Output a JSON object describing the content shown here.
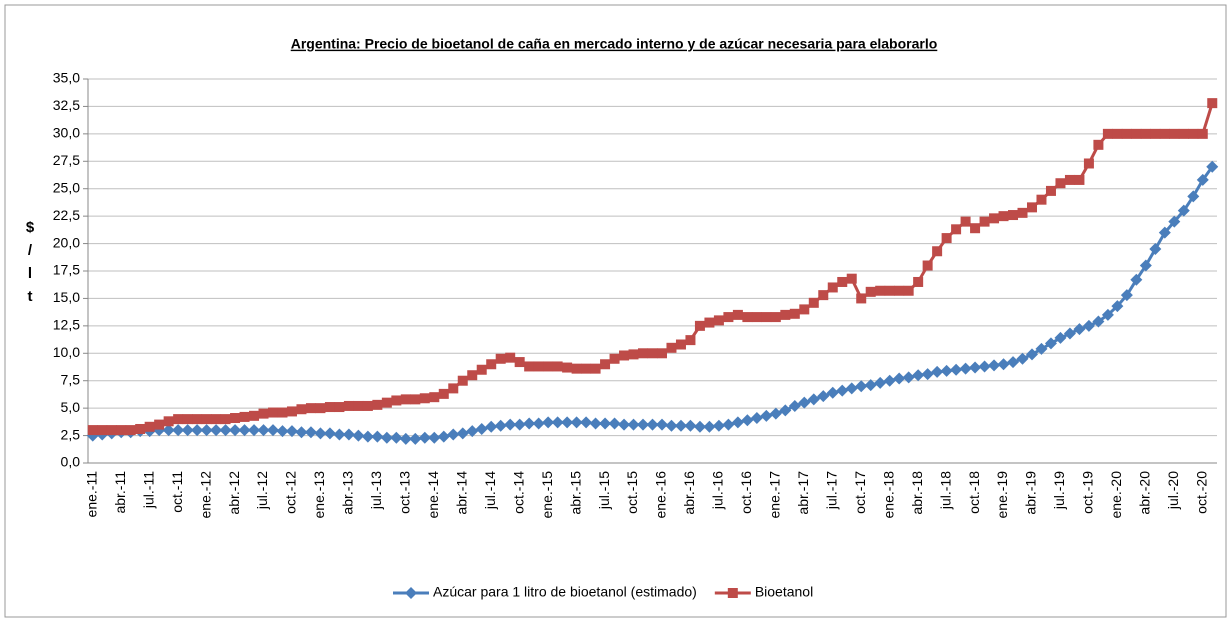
{
  "chart_data": {
    "type": "line",
    "title": "Argentina: Precio de bioetanol de caña en mercado interno y de azúcar necesaria para elaborarlo",
    "y_label": [
      "$",
      "/",
      "l",
      "t"
    ],
    "categories": [
      "ene.-11",
      null,
      null,
      "abr.-11",
      null,
      null,
      "jul.-11",
      null,
      null,
      "oct.-11",
      null,
      null,
      "ene.-12",
      null,
      null,
      "abr.-12",
      null,
      null,
      "jul.-12",
      null,
      null,
      "oct.-12",
      null,
      null,
      "ene.-13",
      null,
      null,
      "abr.-13",
      null,
      null,
      "jul.-13",
      null,
      null,
      "oct.-13",
      null,
      null,
      "ene.-14",
      null,
      null,
      "abr.-14",
      null,
      null,
      "jul.-14",
      null,
      null,
      "oct.-14",
      null,
      null,
      "ene.-15",
      null,
      null,
      "abr.-15",
      null,
      null,
      "jul.-15",
      null,
      null,
      "oct.-15",
      null,
      null,
      "ene.-16",
      null,
      null,
      "abr.-16",
      null,
      null,
      "jul.-16",
      null,
      null,
      "oct.-16",
      null,
      null,
      "ene.-17",
      null,
      null,
      "abr.-17",
      null,
      null,
      "jul.-17",
      null,
      null,
      "oct.-17",
      null,
      null,
      "ene.-18",
      null,
      null,
      "abr.-18",
      null,
      null,
      "jul.-18",
      null,
      null,
      "oct.-18",
      null,
      null,
      "ene.-19",
      null,
      null,
      "abr.-19",
      null,
      null,
      "jul.-19",
      null,
      null,
      "oct.-19",
      null,
      null,
      "ene.-20",
      null,
      null,
      "abr.-20",
      null,
      null,
      "jul.-20",
      null,
      null,
      "oct.-20",
      null
    ],
    "series": [
      {
        "name": "Azúcar para 1 litro de bioetanol (estimado)",
        "color": "#4a7ebb",
        "marker": "diamond",
        "values": [
          2.5,
          2.6,
          2.7,
          2.8,
          2.8,
          2.9,
          2.9,
          3.0,
          3.0,
          3.0,
          3.0,
          3.0,
          3.0,
          3.0,
          3.0,
          3.0,
          3.0,
          3.0,
          3.0,
          3.0,
          2.9,
          2.9,
          2.8,
          2.8,
          2.7,
          2.7,
          2.6,
          2.6,
          2.5,
          2.4,
          2.4,
          2.3,
          2.3,
          2.2,
          2.2,
          2.3,
          2.3,
          2.4,
          2.6,
          2.7,
          2.9,
          3.1,
          3.3,
          3.4,
          3.5,
          3.5,
          3.6,
          3.6,
          3.7,
          3.7,
          3.7,
          3.7,
          3.7,
          3.6,
          3.6,
          3.6,
          3.5,
          3.5,
          3.5,
          3.5,
          3.5,
          3.4,
          3.4,
          3.4,
          3.3,
          3.3,
          3.4,
          3.5,
          3.7,
          3.9,
          4.1,
          4.3,
          4.5,
          4.8,
          5.2,
          5.5,
          5.8,
          6.1,
          6.4,
          6.6,
          6.8,
          7.0,
          7.1,
          7.3,
          7.5,
          7.7,
          7.8,
          8.0,
          8.1,
          8.3,
          8.4,
          8.5,
          8.6,
          8.7,
          8.8,
          8.9,
          9.0,
          9.2,
          9.5,
          9.9,
          10.4,
          10.9,
          11.4,
          11.8,
          12.2,
          12.5,
          12.9,
          13.5,
          14.3,
          15.3,
          16.7,
          18.0,
          19.5,
          21.0,
          22.0,
          23.0,
          24.3,
          25.8,
          27.0
        ]
      },
      {
        "name": "Bioetanol",
        "color": "#be4b48",
        "marker": "square",
        "values": [
          3.0,
          3.0,
          3.0,
          3.0,
          3.0,
          3.1,
          3.3,
          3.5,
          3.8,
          4.0,
          4.0,
          4.0,
          4.0,
          4.0,
          4.0,
          4.1,
          4.2,
          4.3,
          4.5,
          4.6,
          4.6,
          4.7,
          4.9,
          5.0,
          5.0,
          5.1,
          5.1,
          5.2,
          5.2,
          5.2,
          5.3,
          5.5,
          5.7,
          5.8,
          5.8,
          5.9,
          6.0,
          6.3,
          6.8,
          7.5,
          8.0,
          8.5,
          9.0,
          9.5,
          9.6,
          9.2,
          8.8,
          8.8,
          8.8,
          8.8,
          8.7,
          8.6,
          8.6,
          8.6,
          9.0,
          9.5,
          9.8,
          9.9,
          10.0,
          10.0,
          10.0,
          10.5,
          10.8,
          11.2,
          12.5,
          12.8,
          13.0,
          13.3,
          13.5,
          13.3,
          13.3,
          13.3,
          13.3,
          13.5,
          13.6,
          14.0,
          14.6,
          15.3,
          16.0,
          16.5,
          16.8,
          15.0,
          15.6,
          15.7,
          15.7,
          15.7,
          15.7,
          16.5,
          18.0,
          19.3,
          20.5,
          21.3,
          22.0,
          21.4,
          22.0,
          22.3,
          22.5,
          22.6,
          22.8,
          23.3,
          24.0,
          24.8,
          25.5,
          25.8,
          25.8,
          27.3,
          29.0,
          30.0,
          30.0,
          30.0,
          30.0,
          30.0,
          30.0,
          30.0,
          30.0,
          30.0,
          30.0,
          30.0,
          32.8
        ]
      }
    ],
    "ylim": [
      0,
      35
    ],
    "yticks": [
      {
        "value": 0,
        "label": "0,0"
      },
      {
        "value": 2.5,
        "label": "2,5"
      },
      {
        "value": 5,
        "label": "5,0"
      },
      {
        "value": 7.5,
        "label": "7,5"
      },
      {
        "value": 10,
        "label": "10,0"
      },
      {
        "value": 12.5,
        "label": "12,5"
      },
      {
        "value": 15,
        "label": "15,0"
      },
      {
        "value": 17.5,
        "label": "17,5"
      },
      {
        "value": 20,
        "label": "20,0"
      },
      {
        "value": 22.5,
        "label": "22,5"
      },
      {
        "value": 25,
        "label": "25,0"
      },
      {
        "value": 27.5,
        "label": "27,5"
      },
      {
        "value": 30,
        "label": "30,0"
      },
      {
        "value": 32.5,
        "label": "32,5"
      },
      {
        "value": 35,
        "label": "35,0"
      }
    ],
    "grid": true,
    "legend": "bottom"
  }
}
